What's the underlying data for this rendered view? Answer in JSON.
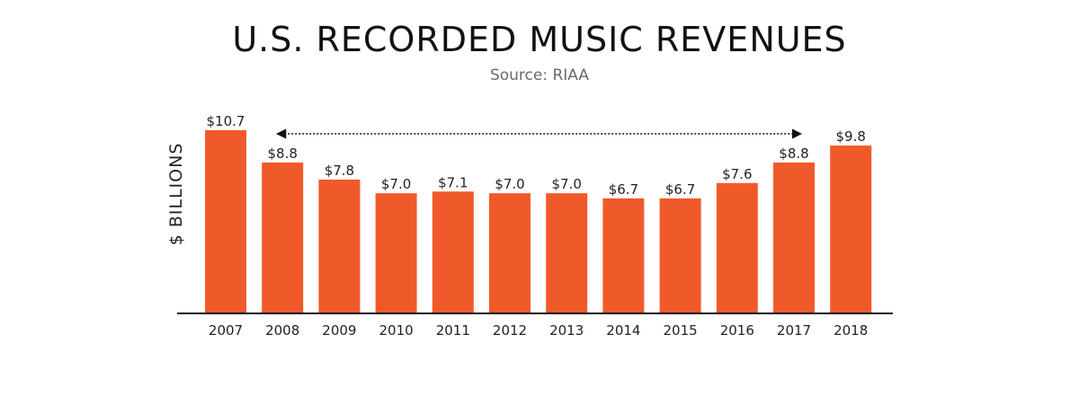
{
  "chart_data": {
    "type": "bar",
    "title": "U.S. RECORDED MUSIC REVENUES",
    "subtitle": "Source: RIAA",
    "ylabel": "$ BILLIONS",
    "categories": [
      "2007",
      "2008",
      "2009",
      "2010",
      "2011",
      "2012",
      "2013",
      "2014",
      "2015",
      "2016",
      "2017",
      "2018"
    ],
    "values": [
      10.7,
      8.8,
      7.8,
      7.0,
      7.1,
      7.0,
      7.0,
      6.7,
      6.7,
      7.6,
      8.8,
      9.8
    ],
    "value_labels": [
      "$10.7",
      "$8.8",
      "$7.8",
      "$7.0",
      "$7.1",
      "$7.0",
      "$7.0",
      "$6.7",
      "$6.7",
      "$7.6",
      "$8.8",
      "$9.8"
    ],
    "annotation": {
      "type": "double-arrow",
      "from_category": "2008",
      "to_category": "2017"
    },
    "ylim": [
      0,
      10.7
    ],
    "grid": false,
    "colors": {
      "bar": "#f05a2a",
      "axis": "#111111",
      "label": "#222222",
      "subtitle": "#6a6a6a"
    }
  }
}
